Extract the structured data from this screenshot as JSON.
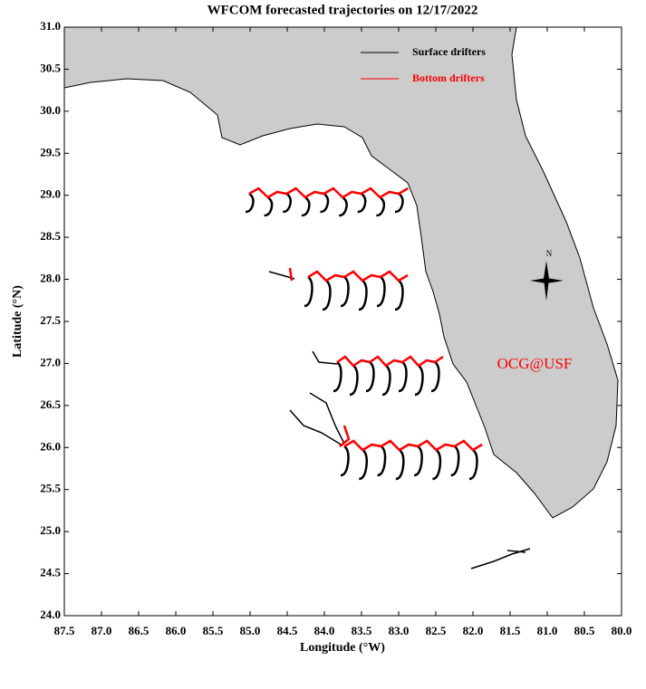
{
  "map": {
    "title": "WFCOM forecasted trajectories on 12/17/2022",
    "x_label": "Longitude (°W)",
    "y_label": "Latitude (°N)",
    "xlim": [
      87.5,
      80.0
    ],
    "ylim": [
      24.0,
      31.0
    ],
    "xticks": [
      87.5,
      {
        "value": 87.0,
        "label": "87.0"
      },
      86.5,
      {
        "value": 86.0,
        "label": "86.0"
      },
      85.5,
      {
        "value": 85.0,
        "label": "85.0"
      },
      84.5,
      {
        "value": 84.0,
        "label": "84.0"
      },
      83.5,
      {
        "value": 83.0,
        "label": "83.0"
      },
      82.5,
      {
        "value": 82.0,
        "label": "82.0"
      },
      81.5,
      {
        "value": 81.0,
        "label": "81.0"
      },
      80.5,
      {
        "value": 80.0,
        "label": "80.0"
      }
    ],
    "yticks": [
      {
        "value": 24.0,
        "label": "24.0"
      },
      24.5,
      {
        "value": 25.0,
        "label": "25.0"
      },
      25.5,
      {
        "value": 26.0,
        "label": "26.0"
      },
      26.5,
      {
        "value": 27.0,
        "label": "27.0"
      },
      27.5,
      {
        "value": 28.0,
        "label": "28.0"
      },
      28.5,
      {
        "value": 29.0,
        "label": "29.0"
      },
      29.5,
      {
        "value": 30.0,
        "label": "30.0"
      },
      30.5,
      {
        "value": 31.0,
        "label": "31.0"
      }
    ],
    "legend": [
      {
        "name": "Surface drifters",
        "color": "#000000"
      },
      {
        "name": "Bottom drifters",
        "color": "#ff0000"
      }
    ],
    "annotation": "OCG@USF",
    "compass_label": "N"
  }
}
